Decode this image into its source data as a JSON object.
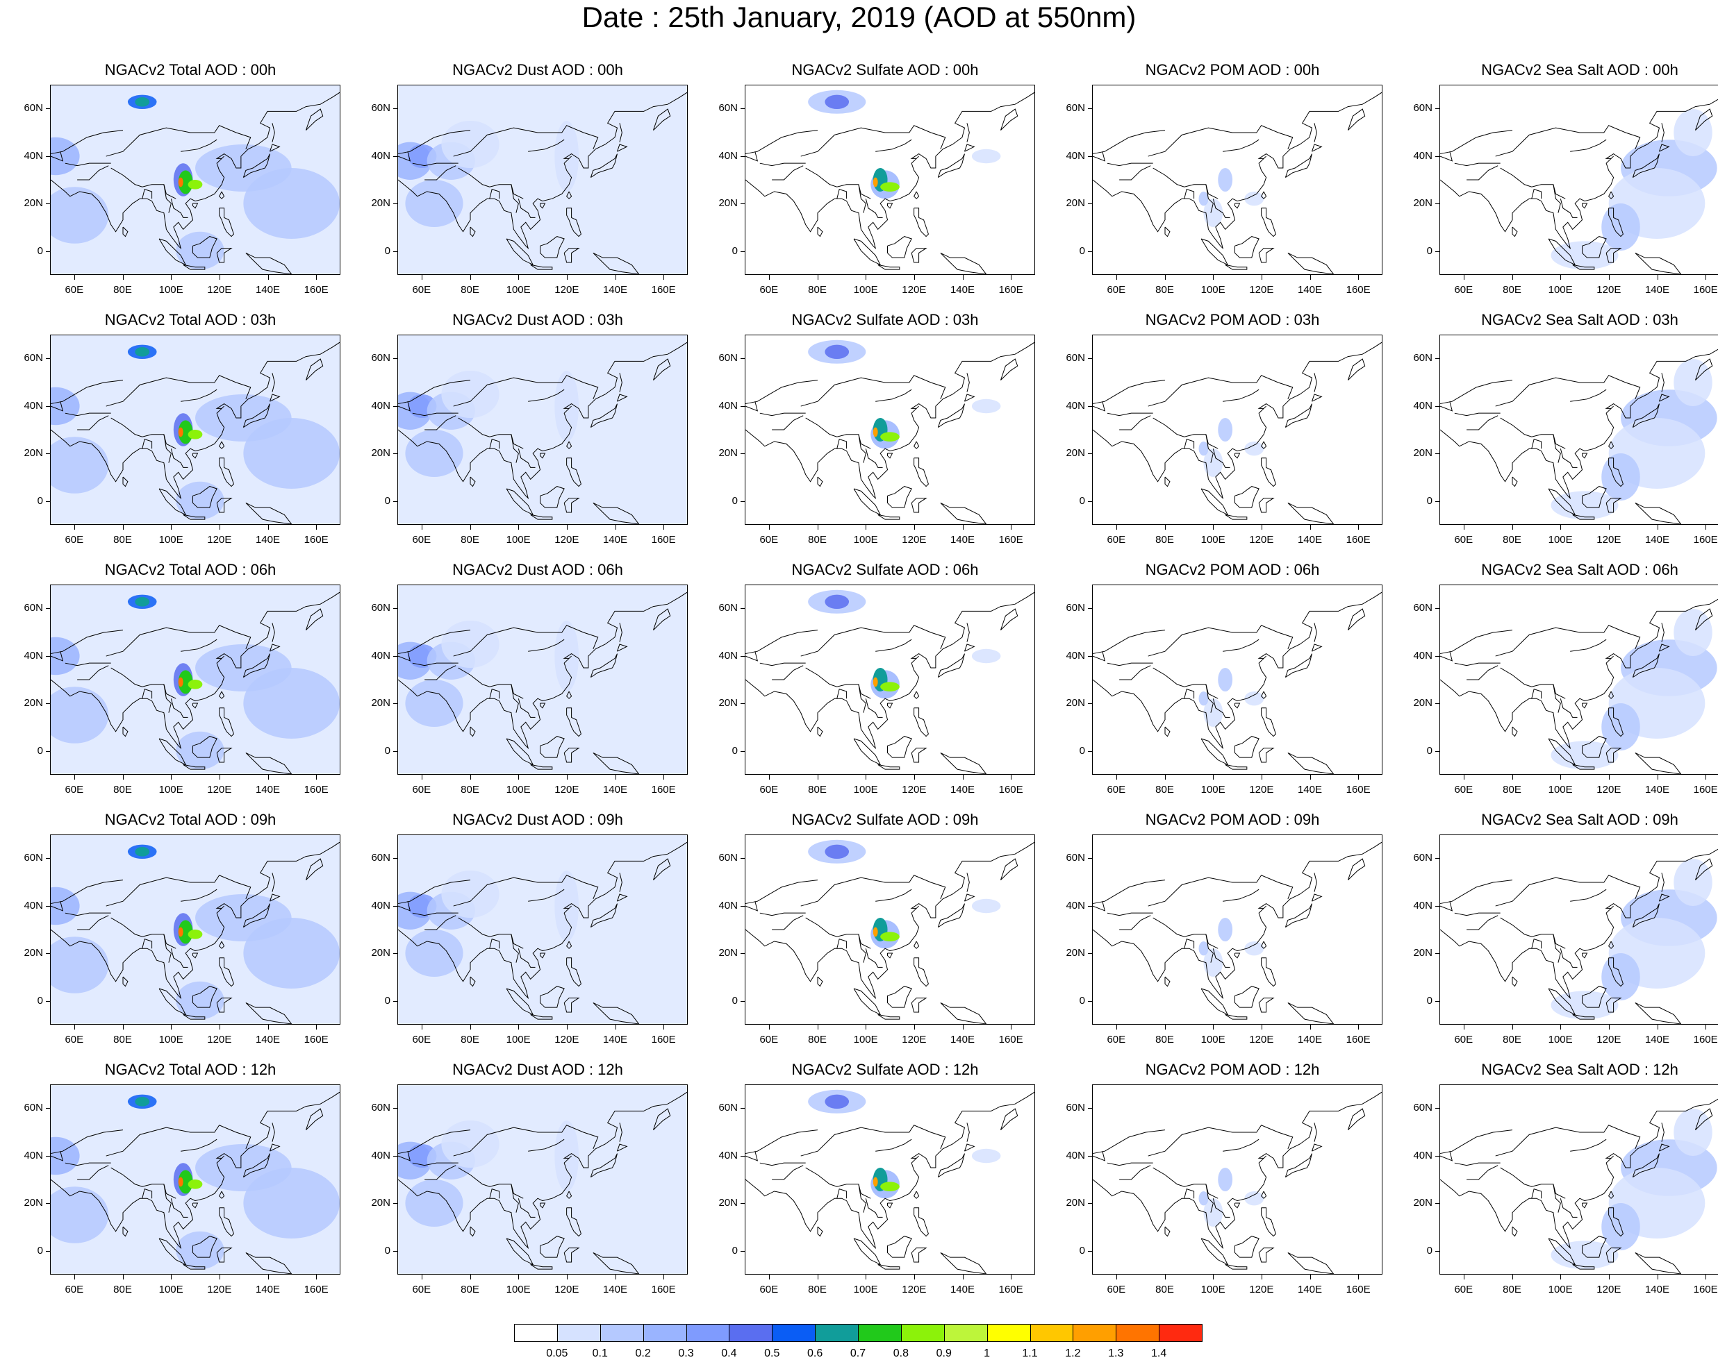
{
  "figure": {
    "title": "Date : 25th January, 2019 (AOD at 550nm)"
  },
  "axes": {
    "lat_labels": [
      "60N",
      "40N",
      "20N",
      "0"
    ],
    "lat_values": [
      60,
      40,
      20,
      0
    ],
    "lon_labels": [
      "60E",
      "80E",
      "100E",
      "120E",
      "140E",
      "160E"
    ],
    "lon_values": [
      60,
      80,
      100,
      120,
      140,
      160
    ],
    "lon_range": [
      50,
      170
    ],
    "lat_range": [
      -10,
      70
    ]
  },
  "columns": [
    "total",
    "dust",
    "sulfate",
    "pom",
    "seasalt"
  ],
  "panels": [
    [
      {
        "title": "NGACv2 Total AOD : 00h",
        "species": "total",
        "hour": "00h"
      },
      {
        "title": "NGACv2 Dust AOD : 00h",
        "species": "dust",
        "hour": "00h"
      },
      {
        "title": "NGACv2 Sulfate AOD : 00h",
        "species": "sulfate",
        "hour": "00h"
      },
      {
        "title": "NGACv2 POM AOD : 00h",
        "species": "pom",
        "hour": "00h"
      },
      {
        "title": "NGACv2 Sea Salt AOD : 00h",
        "species": "seasalt",
        "hour": "00h"
      }
    ],
    [
      {
        "title": "NGACv2 Total AOD : 03h",
        "species": "total",
        "hour": "03h"
      },
      {
        "title": "NGACv2 Dust AOD : 03h",
        "species": "dust",
        "hour": "03h"
      },
      {
        "title": "NGACv2 Sulfate AOD : 03h",
        "species": "sulfate",
        "hour": "03h"
      },
      {
        "title": "NGACv2 POM AOD : 03h",
        "species": "pom",
        "hour": "03h"
      },
      {
        "title": "NGACv2 Sea Salt AOD : 03h",
        "species": "seasalt",
        "hour": "03h"
      }
    ],
    [
      {
        "title": "NGACv2 Total AOD : 06h",
        "species": "total",
        "hour": "06h"
      },
      {
        "title": "NGACv2 Dust AOD : 06h",
        "species": "dust",
        "hour": "06h"
      },
      {
        "title": "NGACv2 Sulfate AOD : 06h",
        "species": "sulfate",
        "hour": "06h"
      },
      {
        "title": "NGACv2 POM AOD : 06h",
        "species": "pom",
        "hour": "06h"
      },
      {
        "title": "NGACv2 Sea Salt AOD : 06h",
        "species": "seasalt",
        "hour": "06h"
      }
    ],
    [
      {
        "title": "NGACv2 Total AOD : 09h",
        "species": "total",
        "hour": "09h"
      },
      {
        "title": "NGACv2 Dust AOD : 09h",
        "species": "dust",
        "hour": "09h"
      },
      {
        "title": "NGACv2 Sulfate AOD : 09h",
        "species": "sulfate",
        "hour": "09h"
      },
      {
        "title": "NGACv2 POM AOD : 09h",
        "species": "pom",
        "hour": "09h"
      },
      {
        "title": "NGACv2 Sea Salt  AOD : 09h",
        "species": "seasalt",
        "hour": "09h"
      }
    ],
    [
      {
        "title": "NGACv2 Total AOD  : 12h",
        "species": "total",
        "hour": "12h"
      },
      {
        "title": "NGACv2 Dust AOD : 12h",
        "species": "dust",
        "hour": "12h"
      },
      {
        "title": "NGACv2 Sulfate AOD : 12h",
        "species": "sulfate",
        "hour": "12h"
      },
      {
        "title": "NGACv2 POM  AOD : 12h",
        "species": "pom",
        "hour": "12h"
      },
      {
        "title": "NGACv2 Sea Salt  AOD : 12h",
        "species": "seasalt",
        "hour": "12h"
      }
    ]
  ],
  "colorbar": {
    "labels": [
      "0.05",
      "0.1",
      "0.2",
      "0.3",
      "0.4",
      "0.5",
      "0.6",
      "0.7",
      "0.8",
      "0.9",
      "1",
      "1.1",
      "1.2",
      "1.3",
      "1.4"
    ],
    "colors": [
      "#ffffff",
      "#d6e2ff",
      "#b5c9ff",
      "#9ab4ff",
      "#7f9bfe",
      "#5a6ef0",
      "#0a5df5",
      "#119d9a",
      "#21c91b",
      "#8cf20a",
      "#bdf53a",
      "#ffff00",
      "#ffc700",
      "#ff9f00",
      "#ff7400",
      "#ff2a10"
    ]
  },
  "colors": {
    "coastline": "#000000",
    "frame": "#000000"
  }
}
